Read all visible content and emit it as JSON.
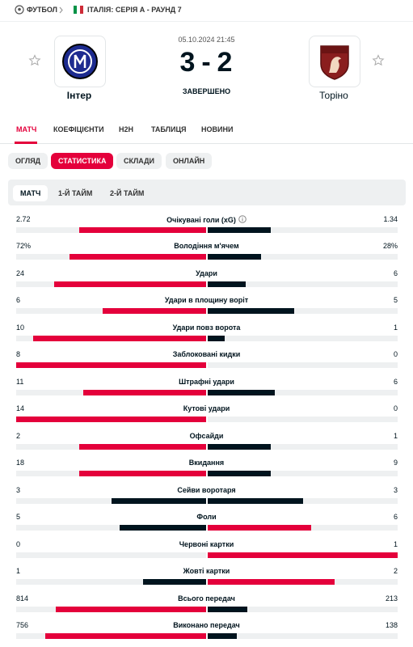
{
  "breadcrumb": {
    "sport": "ФУТБОЛ",
    "league": "ІТАЛІЯ: СЕРІЯ А - РАУНД 7"
  },
  "match": {
    "date": "05.10.2024 21:45",
    "home_team": "Інтер",
    "away_team": "Торіно",
    "home_score": "3",
    "separator": "-",
    "away_score": "2",
    "status": "ЗАВЕРШЕНО"
  },
  "tabs": {
    "items": [
      "МАТЧ",
      "КОЕФІЦІЄНТИ",
      "H2H",
      "ТАБЛИЦЯ",
      "НОВИНИ"
    ],
    "active": 0
  },
  "subtabs": {
    "items": [
      "ОГЛЯД",
      "СТАТИСТИКА",
      "СКЛАДИ",
      "ОНЛАЙН"
    ],
    "active": 1
  },
  "periods": {
    "items": [
      "МАТЧ",
      "1-Й ТАЙМ",
      "2-Й ТАЙМ"
    ],
    "active": 0
  },
  "stats": [
    {
      "label": "Очікувані голи (xG)",
      "home": 2.72,
      "away": 1.34
    },
    {
      "label": "Володіння м'ячем",
      "home": 72,
      "away": 28,
      "home_label": "72%",
      "away_label": "28%"
    },
    {
      "label": "Удари",
      "home": 24,
      "away": 6
    },
    {
      "label": "Удари в площину воріт",
      "home": 6,
      "away": 5
    },
    {
      "label": "Удари повз ворота",
      "home": 10,
      "away": 1
    },
    {
      "label": "Заблоковані кидки",
      "home": 8,
      "away": 0
    },
    {
      "label": "Штрафні удари",
      "home": 11,
      "away": 6
    },
    {
      "label": "Кутові удари",
      "home": 14,
      "away": 0
    },
    {
      "label": "Офсайди",
      "home": 2,
      "away": 1
    },
    {
      "label": "Вкидання",
      "home": 18,
      "away": 9
    },
    {
      "label": "Сейви воротаря",
      "home": 3,
      "away": 3
    },
    {
      "label": "Фоли",
      "home": 5,
      "away": 6
    },
    {
      "label": "Червоні картки",
      "home": 0,
      "away": 1
    },
    {
      "label": "Жовті картки",
      "home": 1,
      "away": 2
    },
    {
      "label": "Всього передач",
      "home": 814,
      "away": 213
    },
    {
      "label": "Виконано передач",
      "home": 756,
      "away": 138
    }
  ]
}
